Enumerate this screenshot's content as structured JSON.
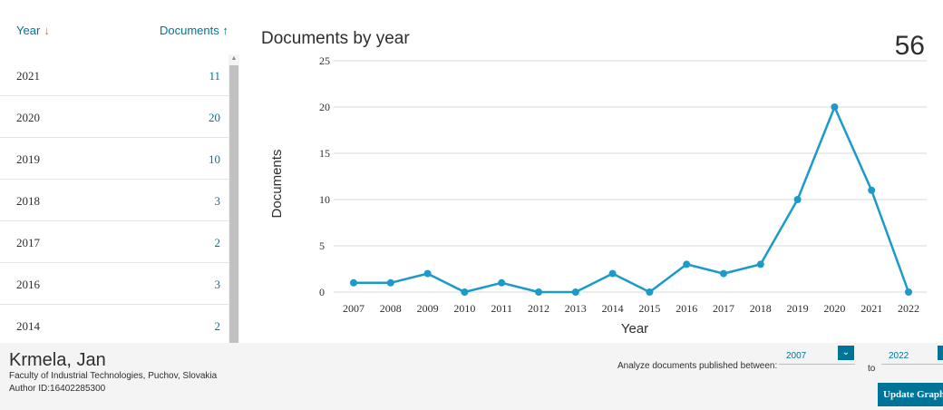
{
  "table": {
    "year_header": "Year",
    "documents_header": "Documents",
    "rows": [
      {
        "year": "2021",
        "count": "11"
      },
      {
        "year": "2020",
        "count": "20"
      },
      {
        "year": "2019",
        "count": "10"
      },
      {
        "year": "2018",
        "count": "3"
      },
      {
        "year": "2017",
        "count": "2"
      },
      {
        "year": "2016",
        "count": "3"
      },
      {
        "year": "2014",
        "count": "2"
      }
    ]
  },
  "chart": {
    "title": "Documents by year",
    "total": "56"
  },
  "chart_data": {
    "type": "line",
    "x": [
      "2007",
      "2008",
      "2009",
      "2010",
      "2011",
      "2012",
      "2013",
      "2014",
      "2015",
      "2016",
      "2017",
      "2018",
      "2019",
      "2020",
      "2021",
      "2022"
    ],
    "values": [
      1,
      1,
      2,
      0,
      1,
      0,
      0,
      2,
      0,
      3,
      2,
      3,
      10,
      20,
      11,
      0
    ],
    "xlabel": "Year",
    "ylabel": "Documents",
    "ylim": [
      0,
      25
    ],
    "yticks": [
      "0",
      "5",
      "10",
      "15",
      "20",
      "25"
    ],
    "grid": true,
    "color": "#1c9ac9"
  },
  "author": {
    "name": "Krmela, Jan",
    "affiliation": "Faculty of Industrial Technologies, Puchov, Slovakia",
    "author_id": "Author ID:16402285300"
  },
  "filter": {
    "label": "Analyze documents published between:",
    "from": "2007",
    "to_label": "to",
    "to": "2022",
    "button": "Update Graph"
  },
  "colors": {
    "link": "#007398",
    "sort_arrow": "#e9711c",
    "footer_bg": "#f4f4f4"
  }
}
